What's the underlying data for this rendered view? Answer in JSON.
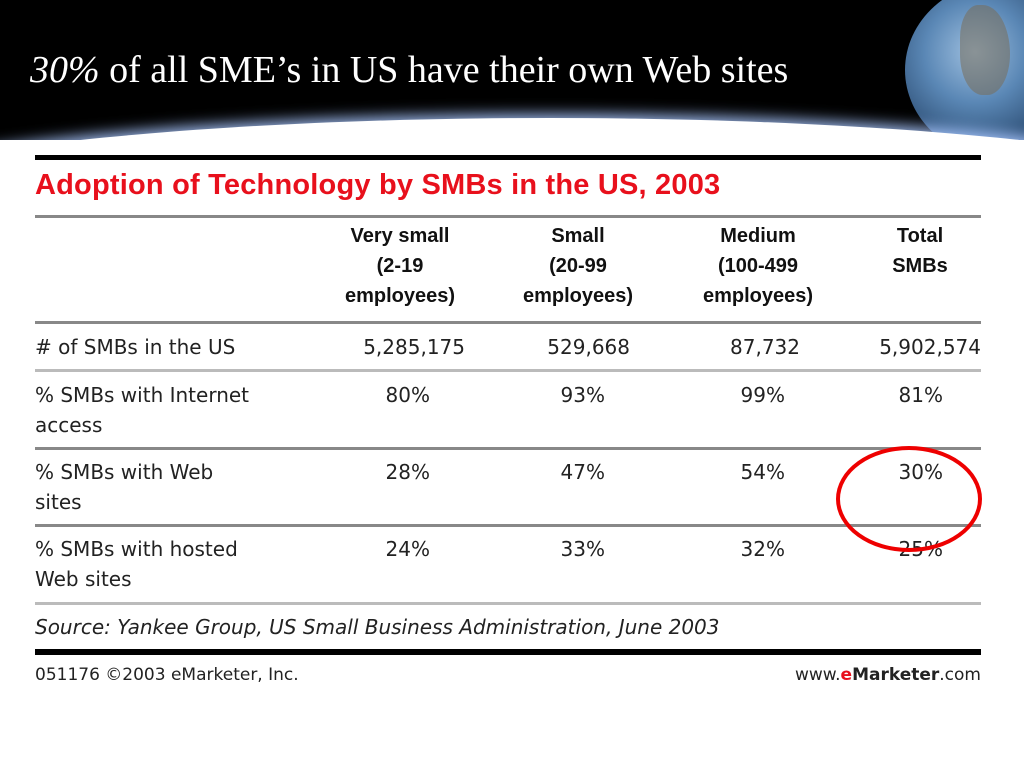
{
  "slide": {
    "title_highlight": "30%",
    "title_rest": " of all SME’s in US have their own Web sites"
  },
  "table": {
    "title": "Adoption of Technology by SMBs in the US, 2003",
    "columns": [
      {
        "line1": "Very small",
        "line2": "(2-19",
        "line3": "employees)"
      },
      {
        "line1": "Small",
        "line2": "(20-99",
        "line3": "employees)"
      },
      {
        "line1": "Medium",
        "line2": "(100-499",
        "line3": "employees)"
      },
      {
        "line1": "Total",
        "line2": "SMBs",
        "line3": ""
      }
    ],
    "rows": [
      {
        "label1": "# of SMBs in the US",
        "label2": "",
        "values": [
          "5,285,175",
          "529,668",
          "87,732",
          "5,902,574"
        ]
      },
      {
        "label1": "% SMBs with Internet",
        "label2": "access",
        "values": [
          "80%",
          "93%",
          "99%",
          "81%"
        ]
      },
      {
        "label1": "% SMBs with Web",
        "label2": "sites",
        "values": [
          "28%",
          "47%",
          "54%",
          "30%"
        ]
      },
      {
        "label1": "% SMBs with hosted",
        "label2": "Web sites",
        "values": [
          "24%",
          "33%",
          "32%",
          "25%"
        ]
      }
    ],
    "source": "Source: Yankee Group, US Small Business Administration, June 2003",
    "copyright": "051176 ©2003 eMarketer, Inc.",
    "site_prefix": "www.",
    "site_e": "e",
    "site_brand": "Marketer",
    "site_suffix": ".com",
    "highlight_color": "#e00000",
    "title_color": "#e8101c"
  }
}
